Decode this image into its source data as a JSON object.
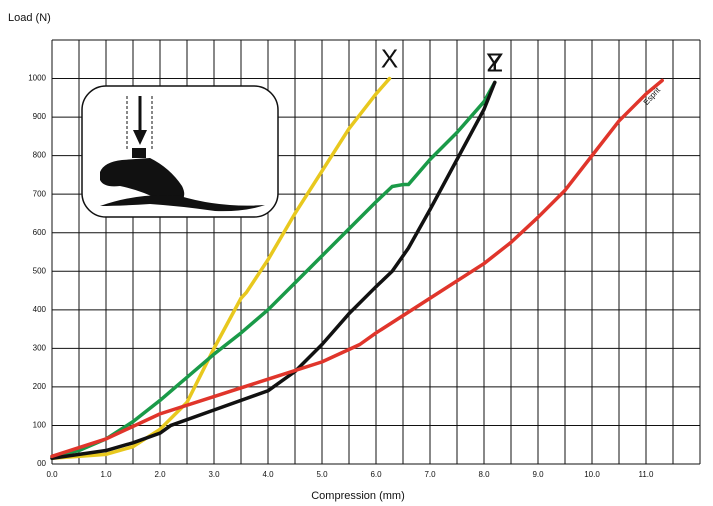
{
  "chart_data": {
    "type": "line",
    "y_label": "Load (N)",
    "x_label": "Compression (mm)",
    "xlim": [
      0,
      12
    ],
    "ylim": [
      0,
      1100
    ],
    "xticks": [
      {
        "value": 0,
        "label": "0.0"
      },
      {
        "value": 1,
        "label": "1.0"
      },
      {
        "value": 2,
        "label": "2.0"
      },
      {
        "value": 3,
        "label": "3.0"
      },
      {
        "value": 4,
        "label": "4.0"
      },
      {
        "value": 5,
        "label": "5.0"
      },
      {
        "value": 6,
        "label": "6.0"
      },
      {
        "value": 7,
        "label": "7.0"
      },
      {
        "value": 8,
        "label": "8.0"
      },
      {
        "value": 9,
        "label": "9.0"
      },
      {
        "value": 10,
        "label": "10.0"
      },
      {
        "value": 11,
        "label": "11.0"
      }
    ],
    "xminorticks": [
      0.5,
      1.5,
      2.5,
      3.5,
      4.5,
      5.5,
      6.5,
      7.5,
      8.5,
      9.5,
      10.5,
      11.5,
      12
    ],
    "yticks": [
      {
        "value": 0,
        "label": "00"
      },
      100,
      200,
      300,
      400,
      500,
      600,
      700,
      800,
      900,
      1000
    ],
    "yminorticks": [
      1100
    ],
    "grid": true,
    "series": [
      {
        "name": "X",
        "color": "#e8c81e",
        "x": [
          0,
          1,
          1.5,
          2,
          2.5,
          3,
          3.5,
          3.6,
          4,
          4.5,
          5,
          5.5,
          6,
          6.25
        ],
        "values": [
          15,
          25,
          45,
          90,
          160,
          300,
          430,
          445,
          530,
          650,
          760,
          870,
          960,
          1000
        ]
      },
      {
        "name": "Y",
        "color": "#1a9a48",
        "x": [
          0,
          0.5,
          1,
          1.5,
          2,
          2.5,
          3,
          3.5,
          4,
          4.5,
          5,
          5.5,
          6,
          6.3,
          6.5,
          6.6,
          7,
          7.5,
          8,
          8.2
        ],
        "values": [
          20,
          35,
          65,
          110,
          165,
          225,
          285,
          340,
          400,
          470,
          540,
          610,
          680,
          720,
          725,
          725,
          790,
          860,
          940,
          990
        ]
      },
      {
        "name": "Z",
        "color": "#111111",
        "x": [
          0,
          0.5,
          1,
          1.5,
          2,
          2.2,
          3,
          4,
          4.5,
          5,
          5.5,
          6,
          6.3,
          6.6,
          7,
          7.5,
          8,
          8.2
        ],
        "values": [
          15,
          25,
          35,
          55,
          80,
          100,
          140,
          190,
          240,
          310,
          390,
          460,
          500,
          560,
          660,
          790,
          920,
          990
        ]
      },
      {
        "name": "Esprit",
        "color": "#e0352b",
        "x": [
          0,
          1,
          2,
          3,
          4,
          5,
          5.7,
          6,
          7,
          8,
          8.5,
          9,
          9.5,
          10,
          10.5,
          11,
          11.3
        ],
        "values": [
          20,
          65,
          130,
          175,
          220,
          265,
          310,
          340,
          430,
          520,
          575,
          640,
          710,
          800,
          890,
          960,
          995
        ]
      }
    ]
  }
}
